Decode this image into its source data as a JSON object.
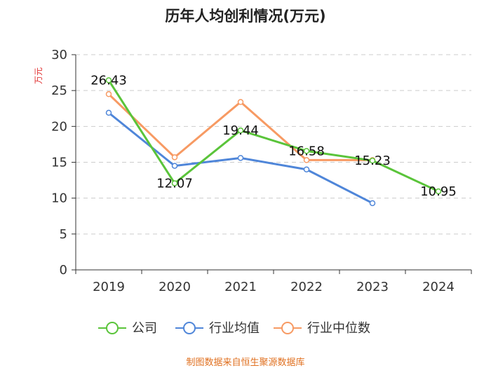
{
  "chart_data": {
    "type": "line",
    "title": "历年人均创利情况(万元)",
    "ylabel": "万元",
    "xlabel": "",
    "categories": [
      "2019",
      "2020",
      "2021",
      "2022",
      "2023",
      "2024"
    ],
    "ylim": [
      0,
      30
    ],
    "yticks": [
      0,
      5,
      10,
      15,
      20,
      25,
      30
    ],
    "grid": true,
    "legend_position": "bottom",
    "series": [
      {
        "name": "公司",
        "color": "#5ac43a",
        "values": [
          26.43,
          12.07,
          19.44,
          16.58,
          15.23,
          10.95
        ],
        "labels": [
          "26.43",
          "12.07",
          "19.44",
          "16.58",
          "15.23",
          "10.95"
        ]
      },
      {
        "name": "行业均值",
        "color": "#4f86d9",
        "values": [
          21.9,
          14.5,
          15.6,
          14.0,
          9.3,
          null
        ]
      },
      {
        "name": "行业中位数",
        "color": "#f79a63",
        "values": [
          24.5,
          15.7,
          23.4,
          15.3,
          15.3,
          null
        ]
      }
    ],
    "source": "制图数据来自恒生聚源数据库"
  }
}
